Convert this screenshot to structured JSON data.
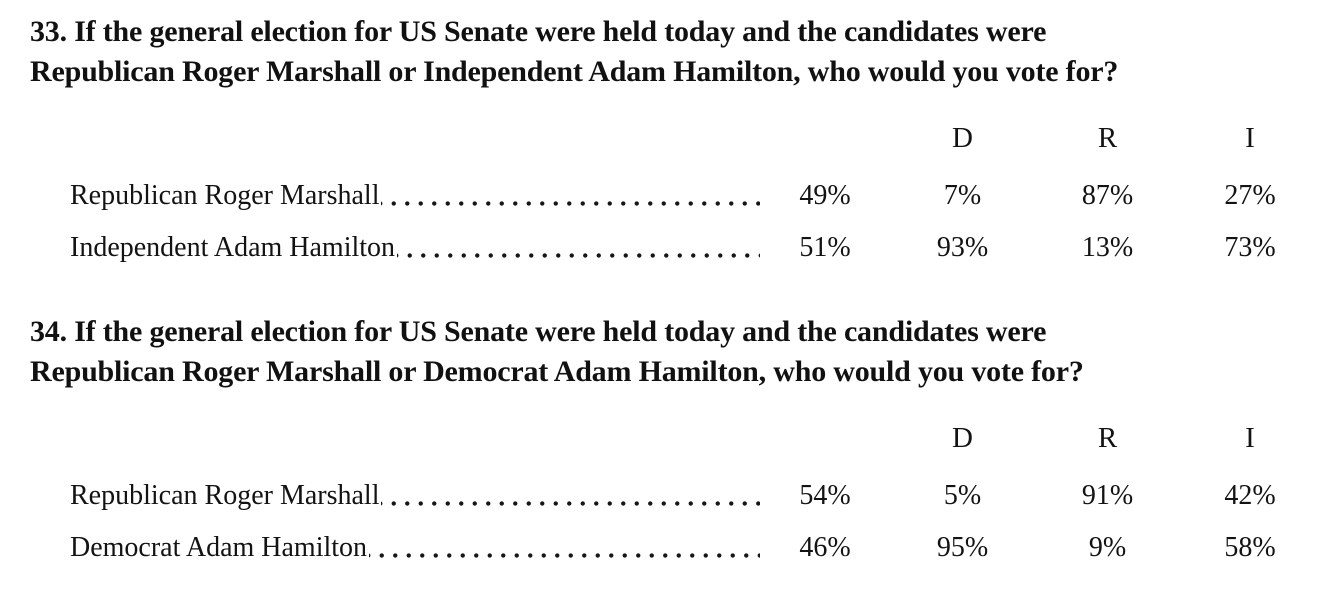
{
  "page": {
    "background_color": "#ffffff",
    "text_color": "#131313"
  },
  "questions": [
    {
      "number": "33",
      "heading_line1": "33. If the general election for US Senate were held today and the candidates were",
      "heading_line2": "Republican Roger Marshall or Independent Adam Hamilton, who would you vote for?",
      "column_headers": [
        "D",
        "R",
        "I"
      ],
      "rows": [
        {
          "label": "Republican Roger Marshall",
          "total": "49%",
          "d": "7%",
          "r": "87%",
          "i": "27%"
        },
        {
          "label": "Independent Adam Hamilton",
          "total": "51%",
          "d": "93%",
          "r": "13%",
          "i": "73%"
        }
      ]
    },
    {
      "number": "34",
      "heading_line1": "34. If the general election for US Senate were held today and the candidates were",
      "heading_line2": "Republican Roger Marshall or Democrat Adam Hamilton, who would you vote for?",
      "column_headers": [
        "D",
        "R",
        "I"
      ],
      "rows": [
        {
          "label": "Republican Roger Marshall",
          "total": "54%",
          "d": "5%",
          "r": "91%",
          "i": "42%"
        },
        {
          "label": "Democrat Adam Hamilton",
          "total": "46%",
          "d": "95%",
          "r": "9%",
          "i": "58%"
        }
      ]
    }
  ]
}
